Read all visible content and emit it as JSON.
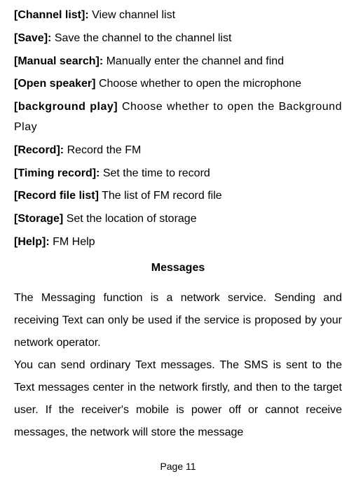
{
  "entries": [
    {
      "label": "[Channel list]:",
      "desc": "View channel list",
      "justified": false
    },
    {
      "label": "[Save]:",
      "desc": "Save the channel to the channel list",
      "justified": false
    },
    {
      "label": "[Manual search]:",
      "desc": "Manually enter the channel and find",
      "justified": false
    },
    {
      "label": "[Open speaker]",
      "desc": "Choose whether to open the microphone",
      "justified": false
    },
    {
      "label": "[background play]",
      "desc": "Choose whether to open the Background Play",
      "justified": true
    },
    {
      "label": "[Record]:",
      "desc": "Record the FM",
      "justified": false
    },
    {
      "label": "[Timing record]:",
      "desc": "Set the time to record",
      "justified": false
    },
    {
      "label": "[Record file list]",
      "desc": "  The list of FM record file",
      "justified": false
    },
    {
      "label": "[Storage]",
      "desc": "Set the location of storage",
      "justified": false
    },
    {
      "label": "[Help]:",
      "desc": "FM Help",
      "justified": false
    }
  ],
  "heading": "Messages",
  "para1": "The Messaging function is a network service. Sending and receiving Text can only be used if the service is proposed by your network operator.",
  "para2": "You can send ordinary Text messages. The SMS is sent to the Text messages center in the network firstly, and then to the target user. If the receiver's mobile is power off or cannot receive messages, the network will store the message",
  "pageNumber": "Page 11"
}
